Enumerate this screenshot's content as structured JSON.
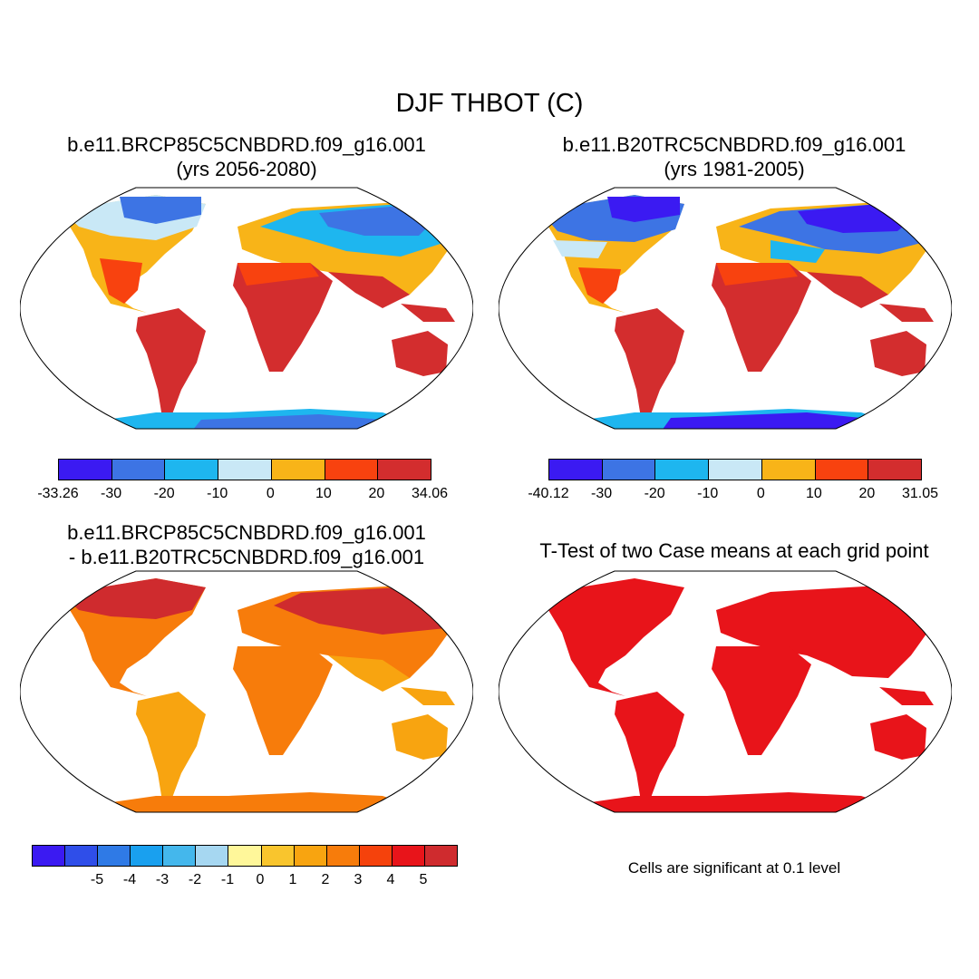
{
  "title": "DJF THBOT (C)",
  "panels": [
    {
      "id": "future",
      "title_line1": "b.e11.BRCP85C5CNBDRD.f09_g16.001",
      "title_line2": "(yrs 2056-2080)",
      "colors": [
        "#3b1af2",
        "#3d74e4",
        "#1eb6ef",
        "#c9e8f6",
        "#f8b418",
        "#f8420f",
        "#d32d2e"
      ],
      "ticks": [
        "-33.26",
        "-30",
        "-20",
        "-10",
        "0",
        "10",
        "20",
        "34.06"
      ]
    },
    {
      "id": "historical",
      "title_line1": "b.e11.B20TRC5CNBDRD.f09_g16.001",
      "title_line2": "(yrs 1981-2005)",
      "colors": [
        "#3b1af2",
        "#3d74e4",
        "#1eb6ef",
        "#c9e8f6",
        "#f8b418",
        "#f8420f",
        "#d32d2e"
      ],
      "ticks": [
        "-40.12",
        "-30",
        "-20",
        "-10",
        "0",
        "10",
        "20",
        "31.05"
      ]
    },
    {
      "id": "difference",
      "title_line1": "b.e11.BRCP85C5CNBDRD.f09_g16.001",
      "title_line2": "- b.e11.B20TRC5CNBDRD.f09_g16.001",
      "colors": [
        "#3b1af2",
        "#2f4ee9",
        "#2f7ae6",
        "#19a0ef",
        "#44b7ec",
        "#a6d7f1",
        "#fff79a",
        "#f9c52d",
        "#f8a410",
        "#f77c0b",
        "#f5420c",
        "#e8141a",
        "#cf2b2e"
      ],
      "ticks": [
        "-5",
        "-4",
        "-3",
        "-2",
        "-1",
        "0",
        "1",
        "2",
        "3",
        "4",
        "5"
      ]
    },
    {
      "id": "ttest",
      "title_line1": "T-Test of two Case means at each grid point",
      "note": "Cells are significant at 0.1 level"
    }
  ]
}
